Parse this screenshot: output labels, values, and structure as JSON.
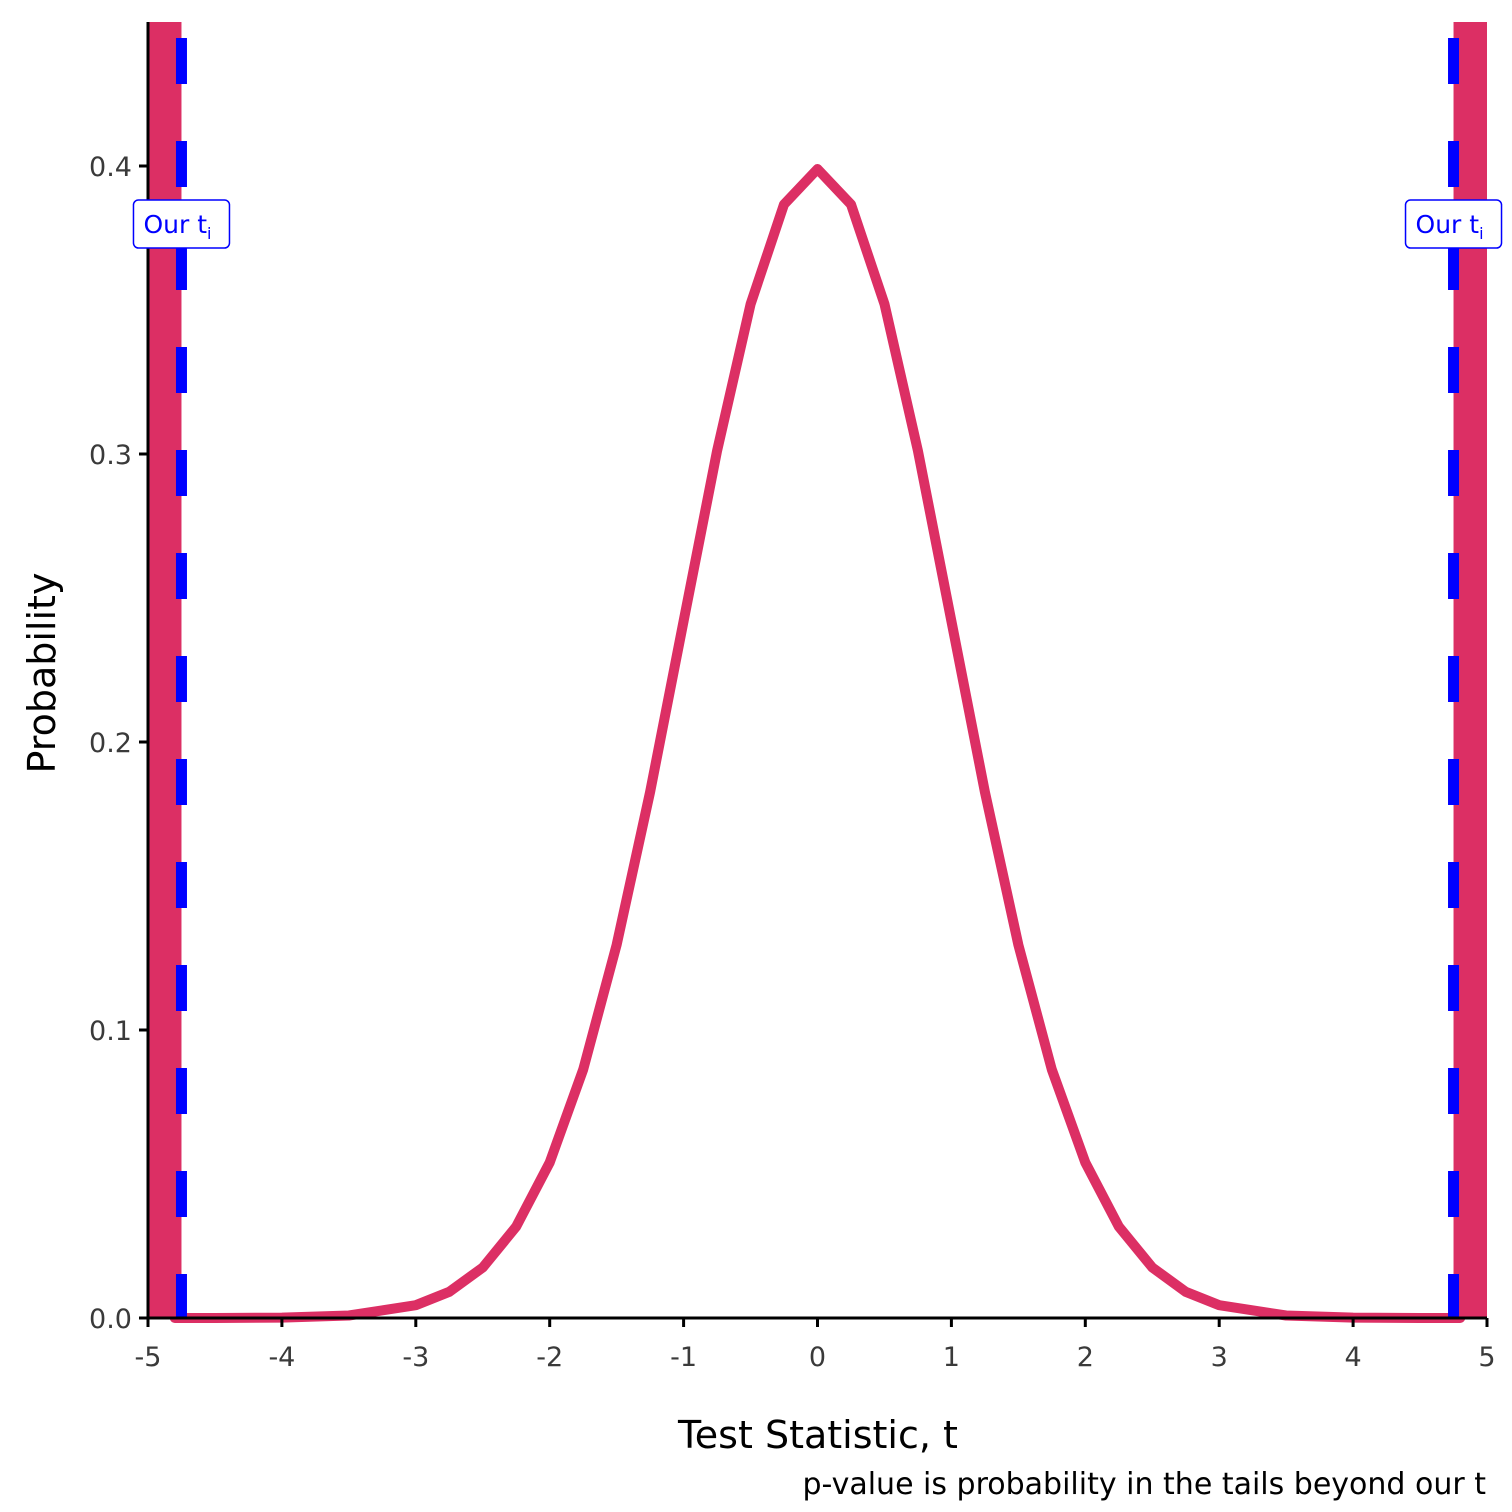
{
  "chart_data": {
    "type": "line",
    "xlabel": "Test Statistic, t",
    "ylabel": "Probability",
    "caption": "p-value is probability in the tails beyond our t",
    "xlim": [
      -5,
      5
    ],
    "ylim": [
      0,
      0.45
    ],
    "x_ticks": [
      -5,
      -4,
      -3,
      -2,
      -1,
      0,
      1,
      2,
      3,
      4,
      5
    ],
    "x_tick_labels": [
      "-5",
      "-4",
      "-3",
      "-2",
      "-1",
      "0",
      "1",
      "2",
      "3",
      "4",
      "5"
    ],
    "y_ticks": [
      0,
      0.1,
      0.2,
      0.3,
      0.4
    ],
    "y_tick_labels": [
      "0.0",
      "0.1",
      "0.2",
      "0.3",
      "0.4"
    ],
    "grid": false,
    "series": [
      {
        "color": "#dc2f64",
        "x": [
          -4.8,
          -4.5,
          -4.0,
          -3.5,
          -3.0,
          -2.75,
          -2.5,
          -2.25,
          -2.0,
          -1.75,
          -1.5,
          -1.25,
          -1.0,
          -0.75,
          -0.5,
          -0.25,
          0.0,
          0.25,
          0.5,
          0.75,
          1.0,
          1.25,
          1.5,
          1.75,
          2.0,
          2.25,
          2.5,
          2.75,
          3.0,
          3.5,
          4.0,
          4.5,
          4.8
        ],
        "y": [
          0.0,
          1.6e-05,
          0.000134,
          0.000873,
          0.004432,
          0.009094,
          0.017528,
          0.03174,
          0.053991,
          0.086277,
          0.129518,
          0.182649,
          0.241971,
          0.301137,
          0.352065,
          0.386668,
          0.398942,
          0.386668,
          0.352065,
          0.301137,
          0.241971,
          0.182649,
          0.129518,
          0.086277,
          0.053991,
          0.03174,
          0.017528,
          0.009094,
          0.004432,
          0.000873,
          0.000134,
          1.6e-05,
          0.0
        ]
      }
    ],
    "tail_regions": [
      {
        "from": -5,
        "to": -4.75,
        "color": "#dc2f64"
      },
      {
        "from": 4.75,
        "to": 5,
        "color": "#dc2f64"
      }
    ],
    "reference_lines": [
      {
        "x": -4.75,
        "color": "#0000ff",
        "style": "dashed",
        "label": "Our t",
        "label_subscript": "i"
      },
      {
        "x": 4.75,
        "color": "#0000ff",
        "style": "dashed",
        "label": "Our t",
        "label_subscript": "i"
      }
    ]
  }
}
